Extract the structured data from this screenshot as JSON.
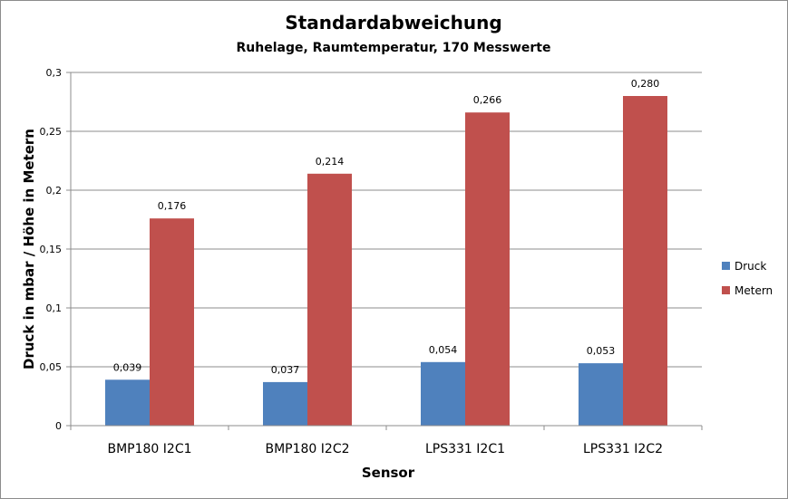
{
  "chart_data": {
    "type": "bar",
    "title": "Standardabweichung",
    "subtitle": "Ruhelage, Raumtemperatur, 170 Messwerte",
    "xlabel": "Sensor",
    "ylabel": "Druck in mbar / Höhe in Metern",
    "categories": [
      "BMP180 I2C1",
      "BMP180 I2C2",
      "LPS331 I2C1",
      "LPS331 I2C2"
    ],
    "series": [
      {
        "name": "Druck",
        "color": "#4f81bd",
        "values": [
          0.039,
          0.037,
          0.054,
          0.053
        ],
        "labels": [
          "0,039",
          "0,037",
          "0,054",
          "0,053"
        ]
      },
      {
        "name": "Metern",
        "color": "#c0504d",
        "values": [
          0.176,
          0.214,
          0.266,
          0.28
        ],
        "labels": [
          "0,176",
          "0,214",
          "0,266",
          "0,280"
        ]
      }
    ],
    "ylim": [
      0,
      0.3
    ],
    "yticks": [
      0,
      0.05,
      0.1,
      0.15,
      0.2,
      0.25,
      0.3
    ],
    "ytick_labels": [
      "0",
      "0,05",
      "0,1",
      "0,15",
      "0,2",
      "0,25",
      "0,3"
    ],
    "grid": true,
    "legend_position": "right"
  }
}
